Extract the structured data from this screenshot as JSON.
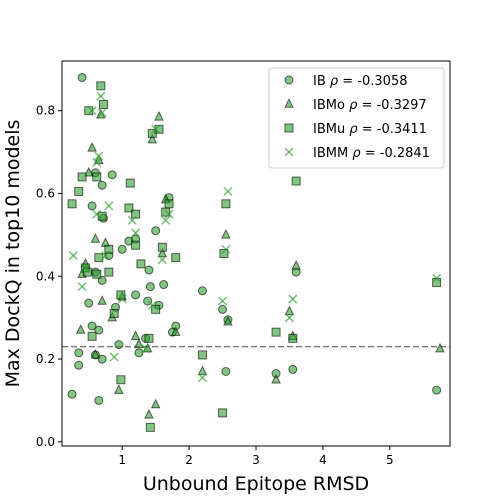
{
  "chart_data": {
    "type": "scatter",
    "title": "",
    "xlabel": "Unbound Epitope RMSD",
    "ylabel": "Max DockQ in top10 models",
    "xlim": [
      0.1,
      5.9
    ],
    "ylim": [
      -0.01,
      0.92
    ],
    "x_ticks": [
      1,
      2,
      3,
      4,
      5
    ],
    "y_ticks": [
      0.0,
      0.2,
      0.4,
      0.6,
      0.8
    ],
    "x_tick_labels": [
      "1",
      "2",
      "3",
      "4",
      "5"
    ],
    "y_tick_labels": [
      "0.0",
      "0.2",
      "0.4",
      "0.6",
      "0.8"
    ],
    "reference_line": {
      "y": 0.23,
      "style": "dashed",
      "color": "#808080"
    },
    "grid": false,
    "legend_position": "top-right",
    "series": [
      {
        "name": "IB",
        "rho_label": "-0.3058",
        "marker": "circle",
        "color": "#2ca02c",
        "points": [
          [
            0.4,
            0.88
          ],
          [
            0.25,
            0.115
          ],
          [
            0.35,
            0.185
          ],
          [
            0.35,
            0.215
          ],
          [
            0.5,
            0.335
          ],
          [
            0.55,
            0.57
          ],
          [
            0.6,
            0.65
          ],
          [
            0.55,
            0.28
          ],
          [
            0.6,
            0.21
          ],
          [
            0.65,
            0.27
          ],
          [
            0.65,
            0.1
          ],
          [
            0.7,
            0.2
          ],
          [
            0.7,
            0.39
          ],
          [
            0.6,
            0.41
          ],
          [
            0.7,
            0.62
          ],
          [
            0.72,
            0.54
          ],
          [
            0.8,
            0.45
          ],
          [
            0.85,
            0.645
          ],
          [
            0.9,
            0.325
          ],
          [
            0.95,
            0.235
          ],
          [
            1.0,
            0.465
          ],
          [
            1.1,
            0.485
          ],
          [
            1.2,
            0.49
          ],
          [
            1.25,
            0.215
          ],
          [
            1.2,
            0.355
          ],
          [
            1.35,
            0.25
          ],
          [
            1.38,
            0.34
          ],
          [
            1.4,
            0.415
          ],
          [
            1.42,
            0.375
          ],
          [
            1.5,
            0.51
          ],
          [
            1.55,
            0.33
          ],
          [
            1.62,
            0.38
          ],
          [
            1.7,
            0.59
          ],
          [
            1.8,
            0.28
          ],
          [
            1.75,
            0.265
          ],
          [
            2.2,
            0.365
          ],
          [
            2.5,
            0.32
          ],
          [
            2.55,
            0.17
          ],
          [
            2.58,
            0.295
          ],
          [
            3.3,
            0.165
          ],
          [
            3.55,
            0.175
          ],
          [
            3.6,
            0.41
          ],
          [
            5.7,
            0.125
          ]
        ]
      },
      {
        "name": "IBMo",
        "rho_label": "-0.3297",
        "marker": "triangle",
        "color": "#2ca02c",
        "points": [
          [
            0.4,
            0.405
          ],
          [
            0.38,
            0.27
          ],
          [
            0.45,
            0.43
          ],
          [
            0.5,
            0.65
          ],
          [
            0.55,
            0.71
          ],
          [
            0.6,
            0.21
          ],
          [
            0.6,
            0.49
          ],
          [
            0.65,
            0.68
          ],
          [
            0.68,
            0.79
          ],
          [
            0.7,
            0.34
          ],
          [
            0.75,
            0.48
          ],
          [
            0.85,
            0.3
          ],
          [
            0.95,
            0.125
          ],
          [
            1.0,
            0.35
          ],
          [
            1.2,
            0.255
          ],
          [
            1.25,
            0.235
          ],
          [
            1.38,
            0.225
          ],
          [
            1.4,
            0.065
          ],
          [
            1.45,
            0.73
          ],
          [
            1.5,
            0.09
          ],
          [
            1.55,
            0.785
          ],
          [
            1.6,
            0.455
          ],
          [
            1.65,
            0.585
          ],
          [
            1.8,
            0.265
          ],
          [
            2.2,
            0.17
          ],
          [
            2.55,
            0.5
          ],
          [
            2.58,
            0.29
          ],
          [
            3.3,
            0.15
          ],
          [
            3.5,
            0.315
          ],
          [
            3.55,
            0.255
          ],
          [
            3.6,
            0.425
          ],
          [
            5.75,
            0.225
          ]
        ]
      },
      {
        "name": "IBMu",
        "rho_label": "-0.3411",
        "marker": "square",
        "color": "#2ca02c",
        "points": [
          [
            0.25,
            0.575
          ],
          [
            0.35,
            0.605
          ],
          [
            0.4,
            0.64
          ],
          [
            0.45,
            0.42
          ],
          [
            0.48,
            0.41
          ],
          [
            0.5,
            0.8
          ],
          [
            0.55,
            0.255
          ],
          [
            0.62,
            0.405
          ],
          [
            0.62,
            0.64
          ],
          [
            0.65,
            0.445
          ],
          [
            0.68,
            0.86
          ],
          [
            0.7,
            0.545
          ],
          [
            0.72,
            0.815
          ],
          [
            0.8,
            0.465
          ],
          [
            0.8,
            0.41
          ],
          [
            0.88,
            0.31
          ],
          [
            0.98,
            0.355
          ],
          [
            0.98,
            0.15
          ],
          [
            1.1,
            0.565
          ],
          [
            1.12,
            0.625
          ],
          [
            1.2,
            0.55
          ],
          [
            1.2,
            0.475
          ],
          [
            1.28,
            0.43
          ],
          [
            1.4,
            0.25
          ],
          [
            1.42,
            0.035
          ],
          [
            1.45,
            0.745
          ],
          [
            1.5,
            0.32
          ],
          [
            1.55,
            0.755
          ],
          [
            1.6,
            0.47
          ],
          [
            1.65,
            0.555
          ],
          [
            1.7,
            0.575
          ],
          [
            1.8,
            0.445
          ],
          [
            2.2,
            0.21
          ],
          [
            2.5,
            0.07
          ],
          [
            2.52,
            0.455
          ],
          [
            2.55,
            0.575
          ],
          [
            3.3,
            0.265
          ],
          [
            3.55,
            0.25
          ],
          [
            3.6,
            0.63
          ],
          [
            5.7,
            0.385
          ]
        ]
      },
      {
        "name": "IBMM",
        "rho_label": "-0.2841",
        "marker": "x",
        "color": "#2ca02c",
        "points": [
          [
            0.27,
            0.45
          ],
          [
            0.4,
            0.375
          ],
          [
            0.45,
            0.42
          ],
          [
            0.55,
            0.8
          ],
          [
            0.62,
            0.675
          ],
          [
            0.62,
            0.55
          ],
          [
            0.65,
            0.69
          ],
          [
            0.68,
            0.835
          ],
          [
            0.7,
            0.795
          ],
          [
            0.75,
            0.45
          ],
          [
            0.8,
            0.57
          ],
          [
            0.88,
            0.205
          ],
          [
            1.0,
            0.345
          ],
          [
            1.15,
            0.535
          ],
          [
            1.2,
            0.505
          ],
          [
            1.35,
            0.225
          ],
          [
            1.45,
            0.33
          ],
          [
            1.5,
            0.755
          ],
          [
            1.6,
            0.44
          ],
          [
            1.65,
            0.535
          ],
          [
            1.7,
            0.55
          ],
          [
            2.2,
            0.155
          ],
          [
            2.5,
            0.34
          ],
          [
            2.55,
            0.465
          ],
          [
            2.58,
            0.605
          ],
          [
            3.5,
            0.3
          ],
          [
            3.55,
            0.345
          ],
          [
            5.7,
            0.395
          ]
        ]
      }
    ]
  }
}
